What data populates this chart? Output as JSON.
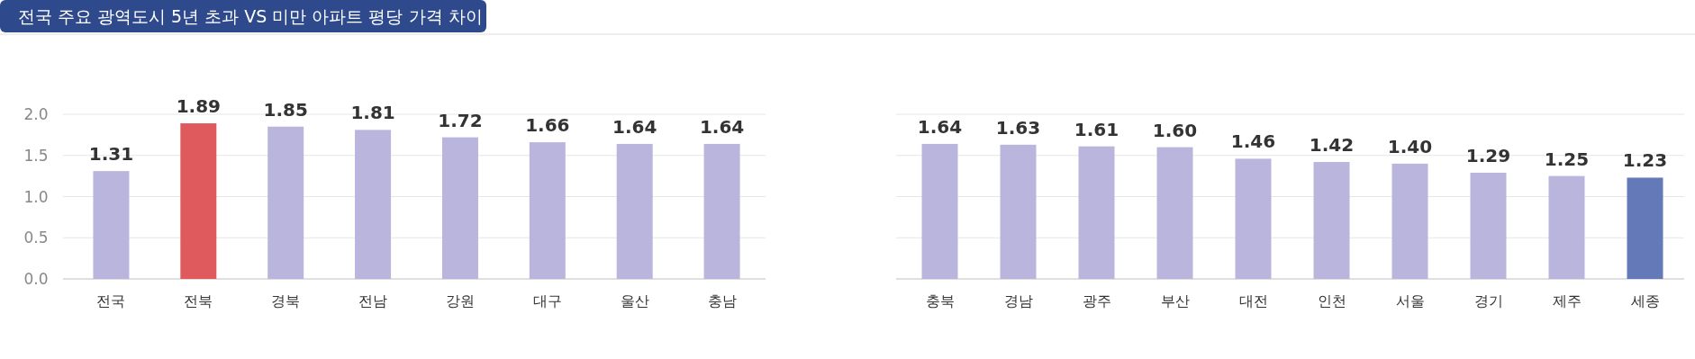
{
  "chart_data": [
    {
      "type": "bar",
      "title": "전국 주요 광역도시 5년 초과 VS 미만 아파트 평당 가격 차이",
      "categories": [
        "전국",
        "전북",
        "경북",
        "전남",
        "강원",
        "대구",
        "울산",
        "충남"
      ],
      "values": [
        1.31,
        1.89,
        1.85,
        1.81,
        1.72,
        1.66,
        1.64,
        1.64
      ],
      "colors": [
        "#b9b5dc",
        "#df5a5c",
        "#b9b5dc",
        "#b9b5dc",
        "#b9b5dc",
        "#b9b5dc",
        "#b9b5dc",
        "#b9b5dc"
      ],
      "value_labels": [
        "1.31",
        "1.89",
        "1.85",
        "1.81",
        "1.72",
        "1.66",
        "1.64",
        "1.64"
      ],
      "ylim": [
        0,
        2
      ],
      "yticks": [
        {
          "value": 0,
          "label": "0.0"
        },
        {
          "value": 0.5,
          "label": "0.5"
        },
        {
          "value": 1,
          "label": "1.0"
        },
        {
          "value": 1.5,
          "label": "1.5"
        },
        {
          "value": 2,
          "label": "2.0"
        }
      ],
      "grid": "y"
    },
    {
      "type": "bar",
      "categories": [
        "충북",
        "경남",
        "광주",
        "부산",
        "대전",
        "인천",
        "서울",
        "경기",
        "제주",
        "세종"
      ],
      "values": [
        1.64,
        1.63,
        1.61,
        1.6,
        1.46,
        1.42,
        1.4,
        1.29,
        1.25,
        1.23
      ],
      "colors": [
        "#b9b5dc",
        "#b9b5dc",
        "#b9b5dc",
        "#b9b5dc",
        "#b9b5dc",
        "#b9b5dc",
        "#b9b5dc",
        "#b9b5dc",
        "#b9b5dc",
        "#6479b8"
      ],
      "value_labels": [
        "1.64",
        "1.63",
        "1.61",
        "1.60",
        "1.46",
        "1.42",
        "1.40",
        "1.29",
        "1.25",
        "1.23"
      ],
      "ylim": [
        0,
        2
      ],
      "yticks": [
        0,
        0.5,
        1,
        1.5,
        2
      ],
      "grid": "y",
      "tick_labels": false
    }
  ]
}
